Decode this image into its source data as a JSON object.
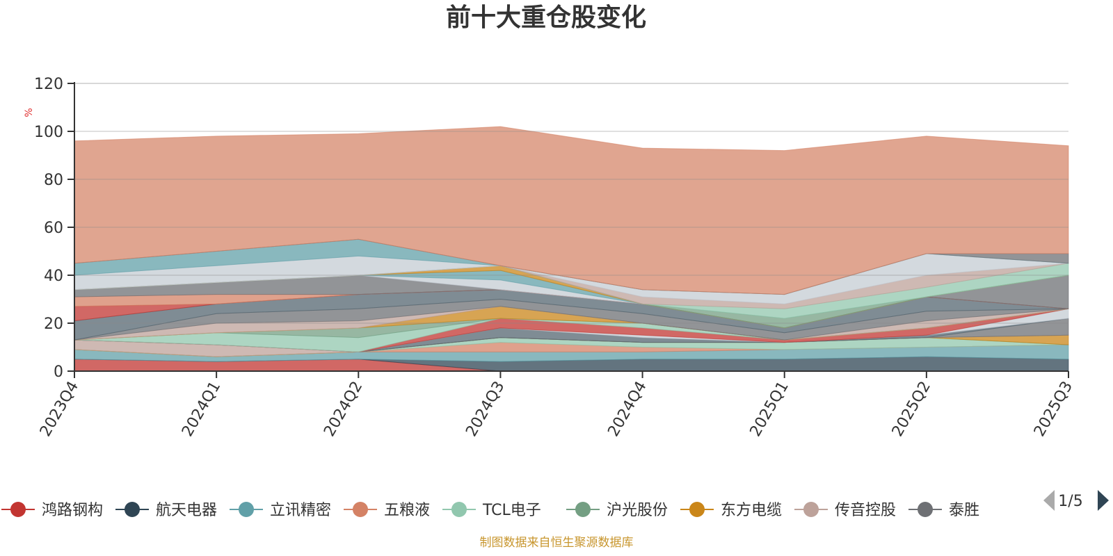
{
  "chart_data": {
    "type": "area",
    "stacked": true,
    "title": "前十大重仓股变化",
    "ylabel": "%",
    "ylim": [
      0,
      120
    ],
    "yticks": [
      0,
      20,
      40,
      60,
      80,
      100,
      120
    ],
    "grid": true,
    "legend_position": "bottom",
    "categories": [
      "2023Q4",
      "2024Q1",
      "2024Q2",
      "2024Q3",
      "2024Q4",
      "2025Q1",
      "2025Q2",
      "2025Q3"
    ],
    "series": [
      {
        "name": "鸿路钢构",
        "color": "#c23531",
        "values": [
          5,
          4,
          5,
          0,
          0,
          0,
          0,
          0
        ]
      },
      {
        "name": "航天电器",
        "color": "#2f4554",
        "values": [
          0,
          0,
          0,
          4,
          5,
          5,
          6,
          5
        ]
      },
      {
        "name": "立讯精密",
        "color": "#61a0a8",
        "values": [
          4,
          2,
          3,
          4,
          3,
          4,
          4,
          6
        ]
      },
      {
        "name": "五粮液",
        "color": "#d48265",
        "values": [
          0,
          0,
          0,
          4,
          2,
          0,
          0,
          0
        ]
      },
      {
        "name": "TCL电子",
        "color": "#91c7ae",
        "values": [
          0,
          0,
          0,
          2,
          2,
          3,
          4,
          0
        ]
      },
      {
        "name": "沪光股份",
        "color": "#749f83",
        "values": [
          0,
          0,
          0,
          0,
          0,
          0,
          0,
          0
        ]
      },
      {
        "name": "东方电缆",
        "color": "#ca8619",
        "values": [
          0,
          0,
          0,
          0,
          0,
          0,
          0,
          4
        ]
      },
      {
        "name": "传音控股",
        "color": "#bda29a",
        "values": [
          4,
          5,
          0,
          0,
          0,
          0,
          0,
          0
        ]
      },
      {
        "name": "泰胜风能",
        "color": "#6e7074",
        "values": [
          0,
          0,
          0,
          0,
          0,
          0,
          0,
          7
        ]
      },
      {
        "name": "",
        "color": "#546570",
        "values": [
          0,
          0,
          0,
          4,
          2,
          0,
          1,
          0
        ]
      },
      {
        "name": "",
        "color": "#c4ccd3",
        "values": [
          0,
          0,
          0,
          0,
          1,
          0,
          0,
          4
        ]
      },
      {
        "name": "",
        "color": "#c23531",
        "values": [
          0,
          0,
          0,
          4,
          3,
          1,
          3,
          0
        ]
      },
      {
        "name": "",
        "color": "#91c7ae",
        "values": [
          0,
          5,
          6,
          0,
          2,
          0,
          0,
          0
        ]
      },
      {
        "name": "",
        "color": "#749f83",
        "values": [
          0,
          0,
          4,
          0,
          0,
          0,
          0,
          0
        ]
      },
      {
        "name": "",
        "color": "#ca8619",
        "values": [
          0,
          0,
          0,
          5,
          0,
          0,
          0,
          0
        ]
      },
      {
        "name": "",
        "color": "#bda29a",
        "values": [
          0,
          4,
          3,
          0,
          0,
          0,
          3,
          0
        ]
      },
      {
        "name": "",
        "color": "#6e7074",
        "values": [
          0,
          4,
          5,
          3,
          4,
          3,
          4,
          0
        ]
      },
      {
        "name": "",
        "color": "#546570",
        "values": [
          8,
          4,
          6,
          4,
          4,
          2,
          6,
          0
        ]
      },
      {
        "name": "",
        "color": "#c23531",
        "values": [
          6,
          0,
          0,
          0,
          0,
          0,
          0,
          0
        ]
      },
      {
        "name": "",
        "color": "#d48265",
        "values": [
          4,
          4,
          0,
          0,
          0,
          0,
          0,
          0
        ]
      },
      {
        "name": "",
        "color": "#6e7074",
        "values": [
          3,
          5,
          8,
          0,
          0,
          0,
          0,
          14
        ]
      },
      {
        "name": "",
        "color": "#c4ccd3",
        "values": [
          0,
          0,
          0,
          4,
          0,
          0,
          0,
          0
        ]
      },
      {
        "name": "",
        "color": "#61a0a8",
        "values": [
          0,
          0,
          0,
          4,
          0,
          0,
          0,
          0
        ]
      },
      {
        "name": "",
        "color": "#ca8619",
        "values": [
          0,
          0,
          0,
          2,
          0,
          0,
          0,
          0
        ]
      },
      {
        "name": "",
        "color": "#749f83",
        "values": [
          0,
          0,
          0,
          0,
          0,
          4,
          0,
          0
        ]
      },
      {
        "name": "",
        "color": "#91c7ae",
        "values": [
          0,
          0,
          0,
          0,
          0,
          4,
          4,
          5
        ]
      },
      {
        "name": "",
        "color": "#bda29a",
        "values": [
          0,
          0,
          0,
          0,
          3,
          2,
          5,
          0
        ]
      },
      {
        "name": "",
        "color": "#c4ccd3",
        "values": [
          6,
          7,
          8,
          0,
          3,
          4,
          9,
          0
        ]
      },
      {
        "name": "",
        "color": "#61a0a8",
        "values": [
          5,
          6,
          7,
          0,
          0,
          0,
          0,
          0
        ]
      },
      {
        "name": "",
        "color": "#6e7074",
        "values": [
          0,
          0,
          0,
          0,
          0,
          0,
          0,
          4
        ]
      },
      {
        "name": "",
        "color": "#d48265",
        "values": [
          51,
          48,
          44,
          58,
          59,
          60,
          49,
          45
        ]
      }
    ]
  },
  "legend": {
    "page_indicator": "1/5",
    "visible_items": [
      "鸿路钢构",
      "航天电器",
      "立讯精密",
      "五粮液",
      "TCL电子",
      "沪光股份",
      "东方电缆",
      "传音控股",
      "泰胜"
    ]
  },
  "footnote": "制图数据来自恒生聚源数据库"
}
